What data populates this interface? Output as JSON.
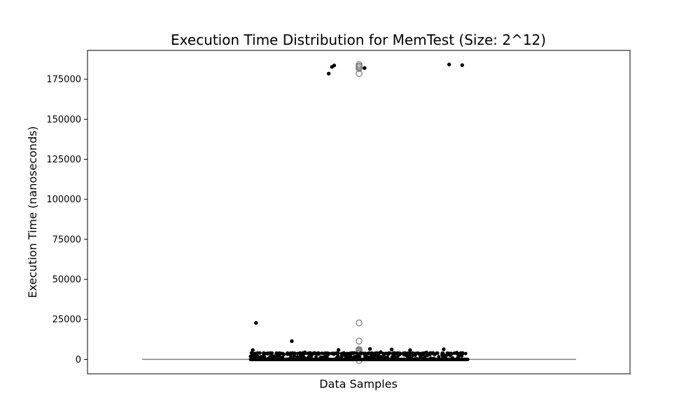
{
  "chart_data": {
    "type": "scatter",
    "title": "Execution Time Distribution for MemTest (Size: 2^12)",
    "xlabel": "Data Samples",
    "ylabel": "Execution Time (nanoseconds)",
    "ylim": [
      -9000,
      193000
    ],
    "yticks": [
      0,
      25000,
      50000,
      75000,
      100000,
      125000,
      150000,
      175000
    ],
    "ytick_labels": [
      "0",
      "25000",
      "50000",
      "75000",
      "100000",
      "125000",
      "150000",
      "175000"
    ],
    "grid": false,
    "legend": "none",
    "colors": {
      "points": "#000000",
      "boxplot": "#808080",
      "background": "#ffffff"
    },
    "boxplot": {
      "median": 0,
      "q1": 0,
      "q3": 0,
      "whisker_low": 0,
      "whisker_high": 0,
      "outliers": [
        184100,
        183300,
        182600,
        181600,
        178600,
        22800,
        11400,
        6200,
        5700,
        5200,
        4600,
        3900,
        3600,
        -700
      ]
    },
    "points": {
      "baseline_value": 0,
      "dense_band_high": 4000,
      "sparse": [
        {
          "jitter": -0.28,
          "y": 178500
        },
        {
          "jitter": -0.25,
          "y": 182700
        },
        {
          "jitter": -0.23,
          "y": 183600
        },
        {
          "jitter": 0.05,
          "y": 182000
        },
        {
          "jitter": 0.83,
          "y": 184200
        },
        {
          "jitter": 0.95,
          "y": 183800
        },
        {
          "jitter": -0.95,
          "y": 22800
        },
        {
          "jitter": -0.62,
          "y": 11400
        },
        {
          "jitter": -0.98,
          "y": 5800
        },
        {
          "jitter": -0.19,
          "y": 5900
        },
        {
          "jitter": 0.1,
          "y": 6500
        },
        {
          "jitter": 0.3,
          "y": 6200
        },
        {
          "jitter": 0.47,
          "y": 5800
        },
        {
          "jitter": 0.78,
          "y": 6300
        },
        {
          "jitter": -0.5,
          "y": 4400
        },
        {
          "jitter": 0.2,
          "y": 4500
        },
        {
          "jitter": 0.62,
          "y": 4300
        },
        {
          "jitter": 0.9,
          "y": 4200
        }
      ]
    }
  }
}
